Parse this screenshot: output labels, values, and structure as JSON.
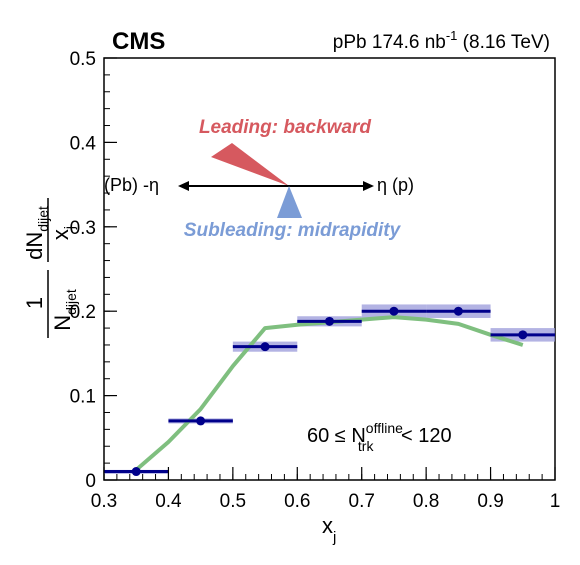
{
  "header": {
    "experiment": "CMS",
    "lumi_prefix": "pPb 174.6 nb",
    "lumi_sup": "-1",
    "lumi_suffix": " (8.16 TeV)"
  },
  "diagram": {
    "leading_label": "Leading: backward",
    "subleading_label": "Subleading: midrapidity",
    "left_label": "(Pb) -η",
    "right_label": "η (p)",
    "leading_color": "#d6595f",
    "subleading_color": "#7b9cd6"
  },
  "annotation": {
    "prefix": "60 ≤ N",
    "sup": "offline",
    "sub": "trk",
    "suffix": " < 120"
  },
  "axes": {
    "x_label": "x",
    "x_label_sub": "j",
    "y_label_one": "1",
    "y_label_norm": "N",
    "y_label_norm_sub": "dijet",
    "y_label_num": "dN",
    "y_label_num_sub": "dijet",
    "y_label_den": "x",
    "y_label_den_sub": "j"
  },
  "chart_data": {
    "type": "scatter",
    "xlim": [
      0.3,
      1.0
    ],
    "ylim": [
      0.0,
      0.5
    ],
    "x_ticks": [
      "0.3",
      "0.4",
      "0.5",
      "0.6",
      "0.7",
      "0.8",
      "0.9",
      "1"
    ],
    "y_ticks": [
      "0",
      "0.1",
      "0.2",
      "0.3",
      "0.4",
      "0.5"
    ],
    "grid": false,
    "series": [
      {
        "kind": "data",
        "x": [
          0.35,
          0.45,
          0.55,
          0.65,
          0.75,
          0.85,
          0.95
        ],
        "y": [
          0.01,
          0.07,
          0.158,
          0.188,
          0.2,
          0.2,
          0.172
        ],
        "x_half_width": 0.05,
        "sys": [
          0.002,
          0.003,
          0.006,
          0.006,
          0.008,
          0.008,
          0.008
        ],
        "color": "#00008b",
        "band_color": "#9999d9"
      },
      {
        "kind": "curve",
        "x": [
          0.35,
          0.4,
          0.45,
          0.5,
          0.55,
          0.6,
          0.65,
          0.7,
          0.75,
          0.8,
          0.85,
          0.9,
          0.95
        ],
        "y": [
          0.012,
          0.045,
          0.084,
          0.135,
          0.18,
          0.184,
          0.187,
          0.19,
          0.193,
          0.19,
          0.185,
          0.172,
          0.16
        ],
        "color": "#7fbf7f"
      }
    ]
  }
}
